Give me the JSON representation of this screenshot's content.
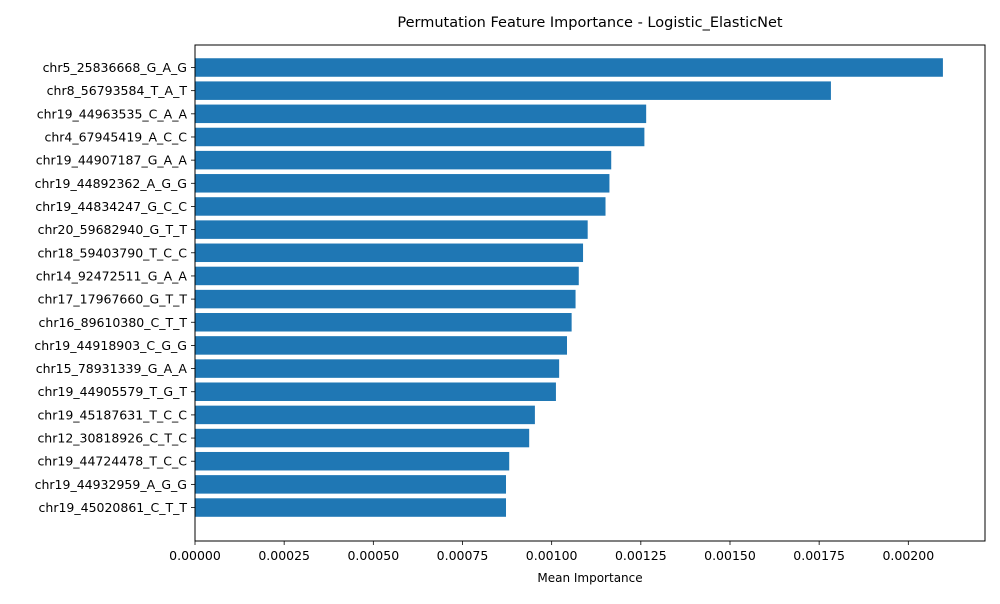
{
  "chart_data": {
    "type": "bar",
    "orientation": "horizontal",
    "title": "Permutation Feature Importance - Logistic_ElasticNet",
    "xlabel": "Mean Importance",
    "ylabel": "",
    "xlim": [
      0,
      0.002215
    ],
    "xticks": [
      0,
      0.00025,
      0.0005,
      0.00075,
      0.001,
      0.00125,
      0.0015,
      0.00175,
      0.002
    ],
    "xtick_labels": [
      "0.00000",
      "0.00025",
      "0.00050",
      "0.00075",
      "0.00100",
      "0.00125",
      "0.00150",
      "0.00175",
      "0.00200"
    ],
    "grid": false,
    "bar_color": "#1f77b4",
    "categories": [
      "chr5_25836668_G_A_G",
      "chr8_56793584_T_A_T",
      "chr19_44963535_C_A_A",
      "chr4_67945419_A_C_C",
      "chr19_44907187_G_A_A",
      "chr19_44892362_A_G_G",
      "chr19_44834247_G_C_C",
      "chr20_59682940_G_T_T",
      "chr18_59403790_T_C_C",
      "chr14_92472511_G_A_A",
      "chr17_17967660_G_T_T",
      "chr16_89610380_C_T_T",
      "chr19_44918903_C_G_G",
      "chr15_78931339_G_A_A",
      "chr19_44905579_T_G_T",
      "chr19_45187631_T_C_C",
      "chr12_30818926_C_T_C",
      "chr19_44724478_T_C_C",
      "chr19_44932959_A_G_G",
      "chr19_45020861_C_T_T"
    ],
    "values": [
      0.002097,
      0.001783,
      0.001265,
      0.00126,
      0.001167,
      0.001162,
      0.001151,
      0.001101,
      0.001088,
      0.001076,
      0.001067,
      0.001056,
      0.001043,
      0.001021,
      0.001012,
      0.000953,
      0.000937,
      0.000881,
      0.000872,
      0.000872
    ]
  }
}
